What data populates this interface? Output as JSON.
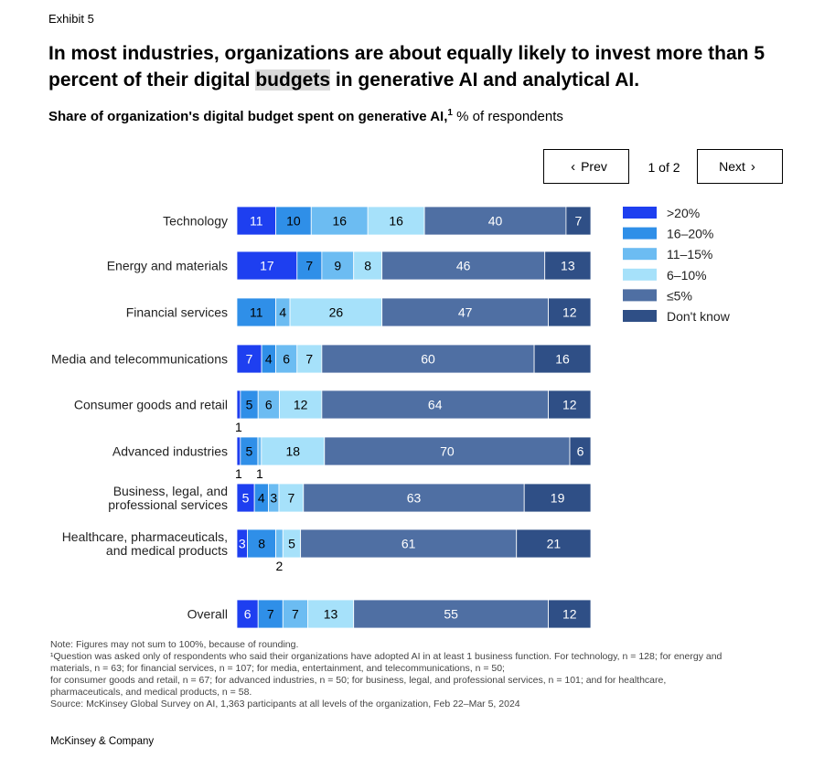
{
  "exhibit": "Exhibit 5",
  "title": {
    "part1": "In most industries, organizations are about equally likely to invest more than 5 percent of their digital ",
    "highlight": "budgets",
    "part2": " in generative AI and analytical AI."
  },
  "subtitle": {
    "bold": "Share of organization's digital budget spent on generative AI,",
    "sup": "1",
    "normal": " % of respondents"
  },
  "pager": {
    "prev": "Prev",
    "indicator": "1 of 2",
    "next": "Next"
  },
  "chart_data": {
    "type": "bar",
    "orientation": "horizontal",
    "stacked": true,
    "legend_position": "right",
    "categories": [
      [
        "Technology"
      ],
      [
        "Energy and materials"
      ],
      [
        "Financial services"
      ],
      [
        "Media and telecommunications"
      ],
      [
        "Consumer goods and retail"
      ],
      [
        "Advanced industries"
      ],
      [
        "Business, legal, and",
        "professional services"
      ],
      [
        "Healthcare, pharmaceuticals,",
        "and medical products"
      ],
      [
        "Overall"
      ]
    ],
    "series": [
      {
        "name": ">20%",
        "color": "#1e3ff0",
        "text_color": "#ffffff",
        "values": [
          11,
          17,
          0,
          7,
          1,
          1,
          5,
          3,
          6
        ]
      },
      {
        "name": "16–20%",
        "color": "#2f8fe8",
        "text_color": "#000000",
        "values": [
          10,
          7,
          11,
          4,
          5,
          5,
          4,
          8,
          7
        ]
      },
      {
        "name": "11–15%",
        "color": "#6cbcf2",
        "text_color": "#000000",
        "values": [
          16,
          9,
          4,
          6,
          6,
          1,
          3,
          2,
          7
        ]
      },
      {
        "name": "6–10%",
        "color": "#a6e1fa",
        "text_color": "#000000",
        "values": [
          16,
          8,
          26,
          7,
          12,
          18,
          7,
          5,
          13
        ]
      },
      {
        "name": "≤5%",
        "color": "#4f6fa3",
        "text_color": "#ffffff",
        "values": [
          40,
          46,
          47,
          60,
          64,
          70,
          63,
          61,
          55
        ]
      },
      {
        "name": "Don't know",
        "color": "#2f4f86",
        "text_color": "#ffffff",
        "values": [
          7,
          13,
          12,
          16,
          12,
          6,
          19,
          21,
          12
        ]
      }
    ],
    "value_labels": [
      [
        "11",
        "10",
        "16",
        "16",
        "40",
        "7"
      ],
      [
        "17",
        "7",
        "9",
        "8",
        "46",
        "13"
      ],
      [
        "",
        "11",
        "4",
        "26",
        "47",
        "12"
      ],
      [
        "7",
        "4",
        "6",
        "7",
        "60",
        "16"
      ],
      [
        "1",
        "5",
        "6",
        "12",
        "64",
        "12"
      ],
      [
        "1",
        "5",
        "1",
        "18",
        "70",
        "6"
      ],
      [
        "5",
        "4",
        "3",
        "7",
        "63",
        "19"
      ],
      [
        "3",
        "8",
        "2",
        "5",
        "61",
        "21"
      ],
      [
        "6",
        "7",
        "7",
        "13",
        "55",
        "12"
      ]
    ]
  },
  "notes": [
    "Note: Figures may not sum to 100%, because of rounding.",
    "¹Question was asked only of respondents who said their organizations have adopted AI in at least 1 business function. For technology, n = 128; for energy and",
    " materials, n = 63; for financial services, n = 107; for media, entertainment, and telecommunications, n = 50;",
    " for consumer goods and retail, n = 67; for advanced industries, n = 50; for business, legal, and professional services, n = 101; and for healthcare,",
    " pharmaceuticals, and medical products, n = 58.",
    "Source: McKinsey Global Survey on AI, 1,363 participants at all levels of the organization, Feb 22–Mar 5, 2024"
  ],
  "brand": "McKinsey & Company"
}
